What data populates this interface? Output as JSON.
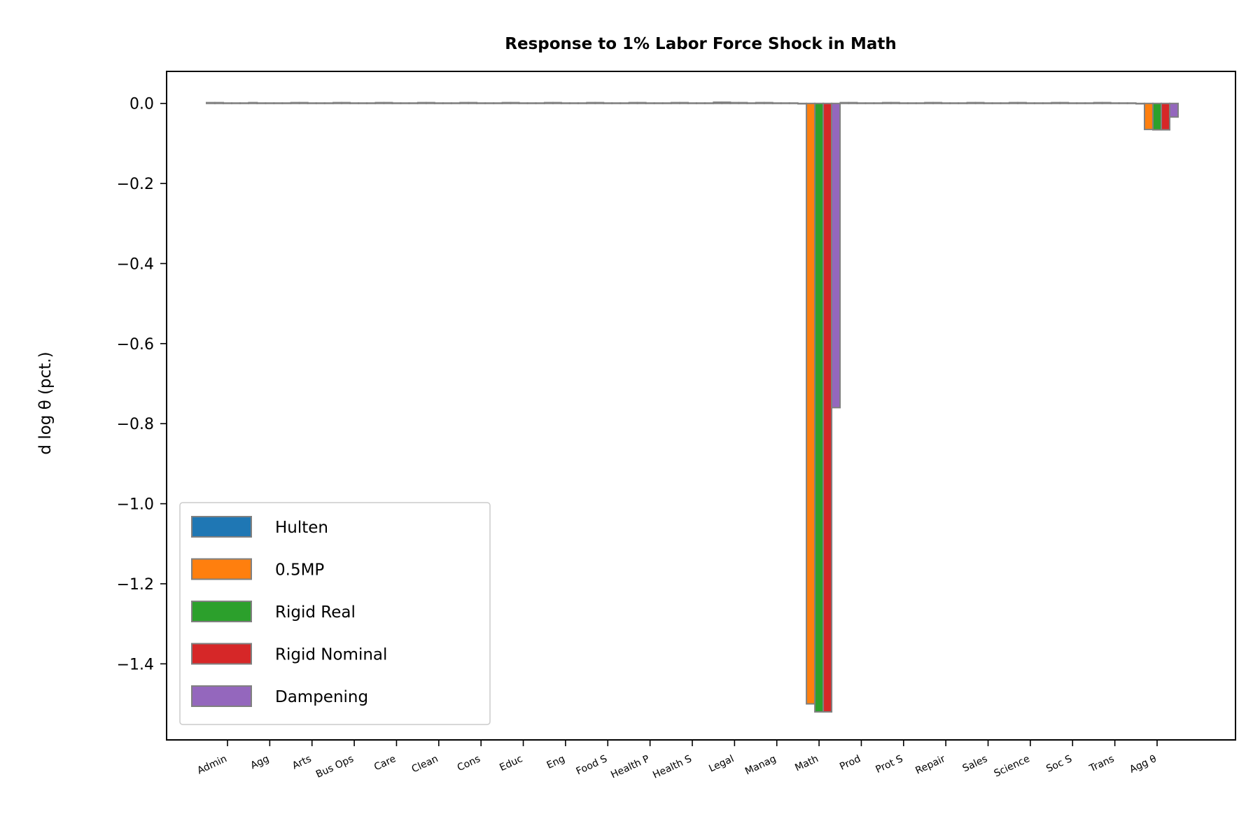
{
  "chart_data": {
    "type": "bar",
    "title": "Response to 1% Labor Force Shock in Math",
    "ylabel": "d log θ  (pct.)",
    "xlabel": "",
    "ylim": [
      -1.59,
      0.08
    ],
    "yticks": [
      0.0,
      -0.2,
      -0.4,
      -0.6,
      -0.8,
      -1.0,
      -1.2,
      -1.4
    ],
    "ytick_labels": [
      "0.0",
      "−0.2",
      "−0.4",
      "−0.6",
      "−0.8",
      "−1.0",
      "−1.2",
      "−1.4"
    ],
    "categories": [
      "Admin",
      "Agg",
      "Arts",
      "Bus Ops",
      "Care",
      "Clean",
      "Cons",
      "Educ",
      "Eng",
      "Food S",
      "Health P",
      "Health S",
      "Legal",
      "Manag",
      "Math",
      "Prod",
      "Prot S",
      "Repair",
      "Sales",
      "Science",
      "Soc S",
      "Trans",
      "Agg θ"
    ],
    "series": [
      {
        "name": "Hulten",
        "color": "#1f77b4",
        "values": [
          0.002,
          0.002,
          0.002,
          0.002,
          0.002,
          0.002,
          0.002,
          0.002,
          0.002,
          0.002,
          0.002,
          0.002,
          0.003,
          0.002,
          0.0,
          0.002,
          0.002,
          0.002,
          0.002,
          0.002,
          0.002,
          0.002,
          0.0
        ]
      },
      {
        "name": "0.5MP",
        "color": "#ff7f0e",
        "values": [
          0.002,
          0.001,
          0.002,
          0.002,
          0.002,
          0.002,
          0.002,
          0.002,
          0.002,
          0.002,
          0.002,
          0.002,
          0.003,
          0.002,
          -1.5,
          0.002,
          0.002,
          0.002,
          0.002,
          0.002,
          0.002,
          0.002,
          -0.065
        ]
      },
      {
        "name": "Rigid Real",
        "color": "#2ca02c",
        "values": [
          0.001,
          0.001,
          0.001,
          0.001,
          0.001,
          0.001,
          0.001,
          0.001,
          0.001,
          0.001,
          0.001,
          0.001,
          0.002,
          0.001,
          -1.52,
          0.001,
          0.001,
          0.001,
          0.001,
          0.001,
          0.001,
          0.001,
          -0.066
        ]
      },
      {
        "name": "Rigid Nominal",
        "color": "#d62728",
        "values": [
          0.001,
          0.001,
          0.001,
          0.001,
          0.001,
          0.001,
          0.001,
          0.001,
          0.001,
          0.001,
          0.001,
          0.001,
          0.002,
          0.001,
          -1.52,
          0.001,
          0.001,
          0.001,
          0.001,
          0.001,
          0.001,
          0.001,
          -0.066
        ]
      },
      {
        "name": "Dampening",
        "color": "#9467bd",
        "values": [
          0.001,
          0.001,
          0.001,
          0.001,
          0.001,
          0.001,
          0.001,
          0.001,
          0.001,
          0.001,
          0.001,
          0.001,
          0.001,
          0.001,
          -0.76,
          0.001,
          0.001,
          0.001,
          0.001,
          0.001,
          0.001,
          0.001,
          -0.034
        ]
      }
    ],
    "bar_edge_color": "#808080",
    "legend_position": "lower-left",
    "grid": false
  }
}
